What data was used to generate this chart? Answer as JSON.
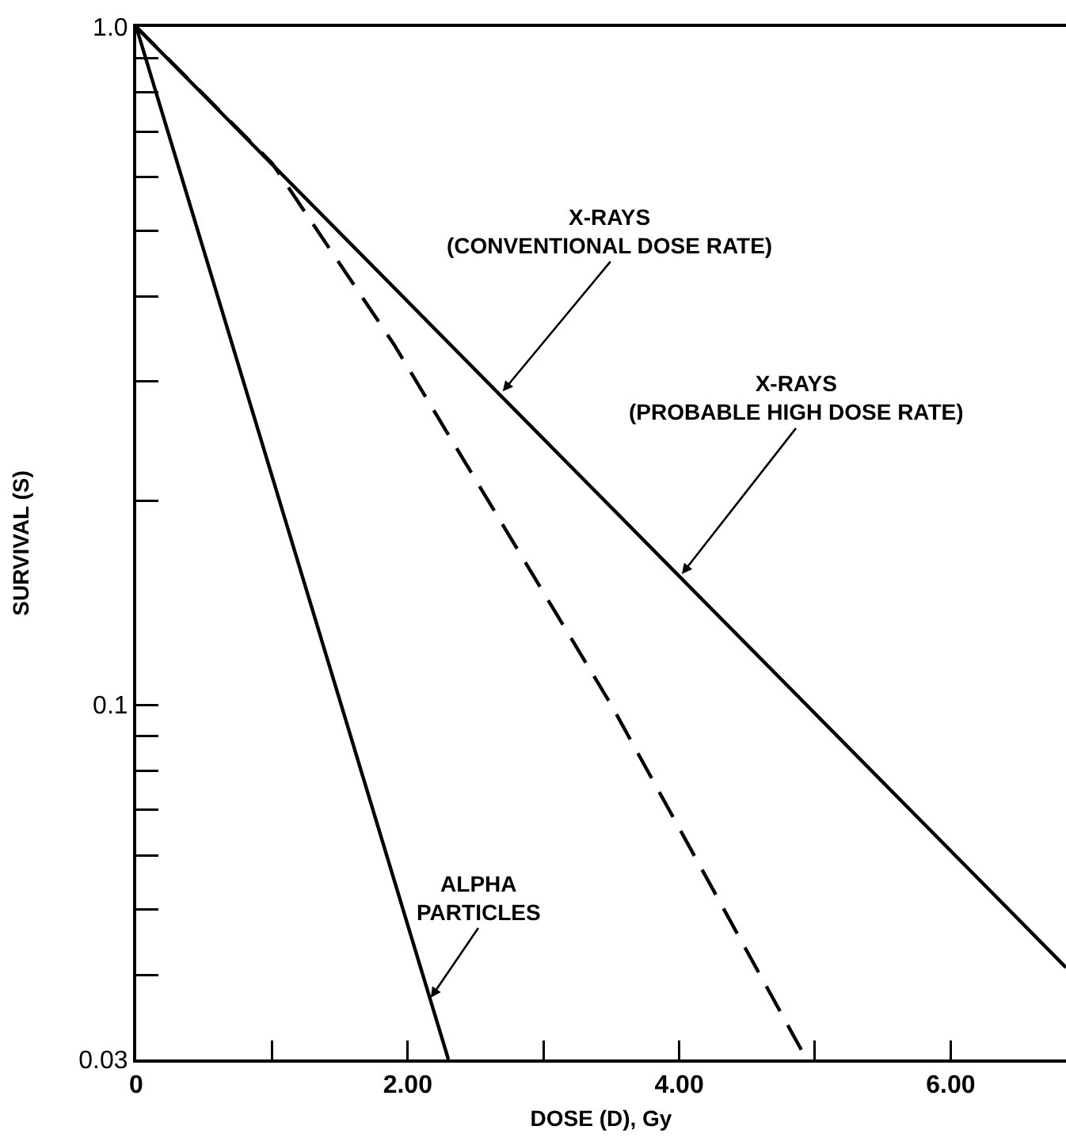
{
  "chart_data": {
    "type": "line",
    "xlabel": "DOSE (D), Gy",
    "ylabel": "SURVIVAL (S)",
    "log": "y",
    "grid": false,
    "marker": "none",
    "series": [
      {
        "color": "#000000",
        "line_style": "solid",
        "x": [
          0,
          6.85
        ],
        "values": [
          1.0,
          0.041
        ]
      },
      {
        "color": "#000000",
        "line_style": "dashed",
        "x": [
          0,
          1.0,
          1.9,
          3.5,
          4.9
        ],
        "values": [
          1.0,
          0.63,
          0.34,
          0.1,
          0.031
        ]
      },
      {
        "color": "#000000",
        "line_style": "solid",
        "x": [
          0,
          2.3
        ],
        "values": [
          1.0,
          0.03
        ]
      }
    ],
    "xlim": [
      0,
      6.85
    ],
    "xticks": [
      0,
      {
        "value": 1,
        "label": null
      },
      {
        "value": 2,
        "label": "2.00"
      },
      {
        "value": 3,
        "label": null
      },
      {
        "value": 4,
        "label": "4.00"
      },
      {
        "value": 5,
        "label": null
      },
      {
        "value": 6,
        "label": "6.00"
      }
    ],
    "ylim": [
      0.03,
      1.0
    ],
    "yticks": [
      {
        "value": 0.03,
        "label": "0.03"
      },
      {
        "value": 0.04,
        "label": null
      },
      {
        "value": 0.05,
        "label": null
      },
      {
        "value": 0.06,
        "label": null
      },
      {
        "value": 0.07,
        "label": null
      },
      {
        "value": 0.08,
        "label": null
      },
      {
        "value": 0.09,
        "label": null
      },
      {
        "value": 0.1,
        "label": "0.1"
      },
      {
        "value": 0.2,
        "label": null
      },
      {
        "value": 0.3,
        "label": null
      },
      {
        "value": 0.4,
        "label": null
      },
      {
        "value": 0.5,
        "label": null
      },
      {
        "value": 0.6,
        "label": null
      },
      {
        "value": 0.7,
        "label": null
      },
      {
        "value": 0.8,
        "label": null
      },
      {
        "value": 0.9,
        "label": null
      },
      {
        "value": 1.0,
        "label": "1.0"
      }
    ],
    "annotations": [
      {
        "text": "X-RAYS\n(CONVENTIONAL DOSE RATE)",
        "x": 2.7,
        "y": 0.29
      },
      {
        "text": "X-RAYS\n(PROBABLE HIGH DOSE RATE)",
        "x": 4.02,
        "y": 0.156
      },
      {
        "text": "ALPHA\nPARTICLES",
        "x": 2.17,
        "y": 0.037
      }
    ]
  }
}
